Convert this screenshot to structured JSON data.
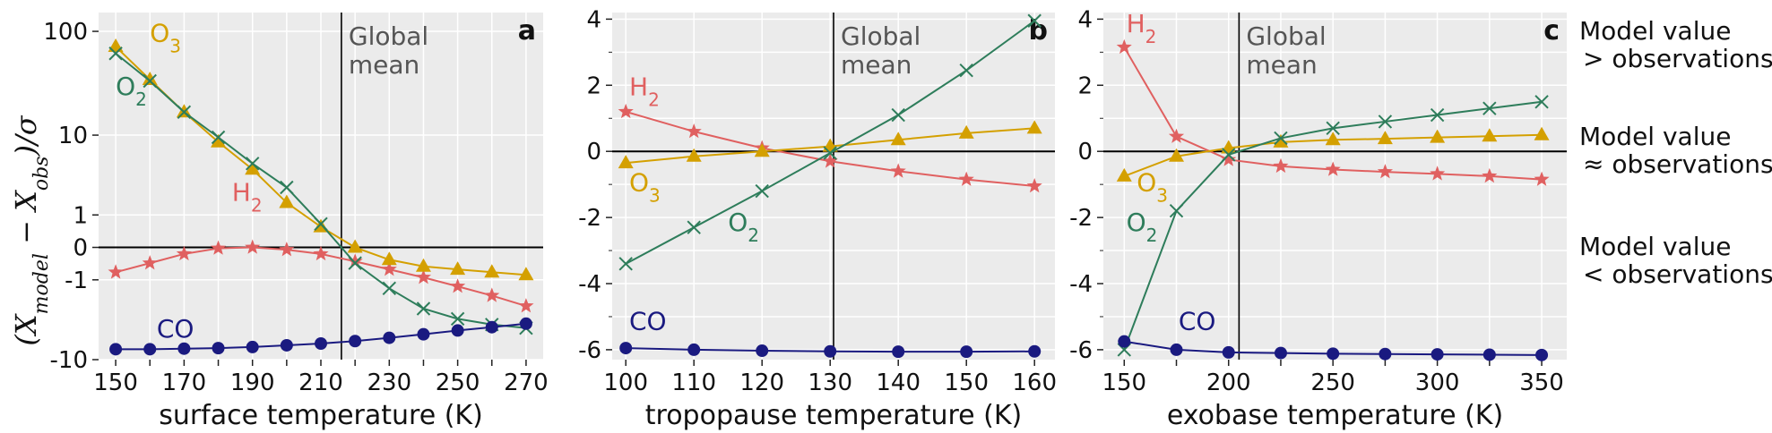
{
  "figure": {
    "ylabel": "(X_model − X_obs)/σ",
    "side_labels": [
      [
        "Model value",
        ">  observations"
      ],
      [
        "Model value",
        "≈ observations"
      ],
      [
        "Model value",
        "< observations"
      ]
    ]
  },
  "colors": {
    "H2": "#e06060",
    "O3": "#d4a000",
    "O2": "#2e7d5b",
    "CO": "#1a1a80",
    "grid_bg": "#ebebeb",
    "grid": "#ffffff"
  },
  "chart_data": [
    {
      "panel": "a",
      "type": "line",
      "yscale": "symlog",
      "xlabel": "surface temperature (K)",
      "ylabel": "(X_model − X_obs)/σ",
      "xlim": [
        145,
        275
      ],
      "ylim": [
        -10,
        150
      ],
      "xticks": [
        150,
        160,
        170,
        180,
        190,
        200,
        210,
        220,
        230,
        240,
        250,
        260,
        270
      ],
      "xticklabels": [
        "150",
        "170",
        "190",
        "210",
        "230",
        "250",
        "270"
      ],
      "yticks": [
        -10,
        -1,
        0,
        1,
        10,
        100
      ],
      "yticklabels": [
        "-10",
        "-1",
        "0",
        "1",
        "10",
        "100"
      ],
      "vline": 216,
      "vline_label": [
        "Global",
        "mean"
      ],
      "series": [
        {
          "name": "H2",
          "marker": "star",
          "label": {
            "text": "H₂",
            "x": 184,
            "y": 1.7
          },
          "x": [
            150,
            160,
            170,
            180,
            190,
            200,
            210,
            220,
            230,
            240,
            250,
            260,
            270
          ],
          "y": [
            -0.7,
            -0.4,
            -0.15,
            -0.02,
            0,
            -0.05,
            -0.15,
            -0.35,
            -0.6,
            -0.9,
            -1.3,
            -1.8,
            -2.5
          ]
        },
        {
          "name": "O3",
          "marker": "triangle",
          "label": {
            "text": "O₃",
            "x": 160,
            "y": 80
          },
          "x": [
            150,
            160,
            170,
            180,
            190,
            200,
            210,
            220,
            230,
            240,
            250,
            260,
            270
          ],
          "y": [
            72,
            35,
            17,
            8.5,
            4.3,
            1.6,
            0.55,
            0,
            -0.3,
            -0.5,
            -0.6,
            -0.7,
            -0.8
          ]
        },
        {
          "name": "O2",
          "marker": "x",
          "label": {
            "text": "O₂",
            "x": 150,
            "y": 25
          },
          "x": [
            150,
            160,
            170,
            180,
            190,
            200,
            210,
            220,
            230,
            240,
            250,
            260,
            270
          ],
          "y": [
            62,
            34,
            17,
            9.5,
            5,
            2.6,
            0.65,
            -0.4,
            -1.4,
            -2.7,
            -3.6,
            -4.2,
            -4.6
          ]
        },
        {
          "name": "CO",
          "marker": "circle",
          "label": {
            "text": "CO",
            "x": 162,
            "y": -5.8
          },
          "x": [
            150,
            160,
            170,
            180,
            190,
            200,
            210,
            220,
            230,
            240,
            250,
            260,
            270
          ],
          "y": [
            -7.8,
            -7.8,
            -7.7,
            -7.6,
            -7.4,
            -7.1,
            -6.8,
            -6.4,
            -5.9,
            -5.4,
            -4.9,
            -4.5,
            -4.1
          ]
        }
      ]
    },
    {
      "panel": "b",
      "type": "line",
      "xlabel": "tropopause temperature (K)",
      "xlim": [
        98,
        163
      ],
      "ylim": [
        -6.3,
        4.2
      ],
      "xticks": [
        100,
        110,
        120,
        130,
        140,
        150,
        160
      ],
      "xticklabels": [
        "100",
        "110",
        "120",
        "130",
        "140",
        "150",
        "160"
      ],
      "yticks": [
        -6,
        -4,
        -2,
        0,
        2,
        4
      ],
      "yticklabels": [
        "-6",
        "-4",
        "-2",
        "0",
        "2",
        "4"
      ],
      "vline": 130.5,
      "vline_label": [
        "Global",
        "mean"
      ],
      "series": [
        {
          "name": "H2",
          "marker": "star",
          "label": {
            "text": "H₂",
            "x": 100.5,
            "y": 1.7
          },
          "x": [
            100,
            110,
            120,
            130,
            140,
            150,
            160
          ],
          "y": [
            1.2,
            0.6,
            0.1,
            -0.3,
            -0.6,
            -0.85,
            -1.05
          ]
        },
        {
          "name": "O3",
          "marker": "triangle",
          "label": {
            "text": "O₃",
            "x": 100.5,
            "y": -1.2
          },
          "x": [
            100,
            110,
            120,
            130,
            140,
            150,
            160
          ],
          "y": [
            -0.35,
            -0.15,
            0,
            0.15,
            0.35,
            0.55,
            0.7
          ]
        },
        {
          "name": "O2",
          "marker": "x",
          "label": {
            "text": "O₂",
            "x": 115,
            "y": -2.4
          },
          "x": [
            100,
            110,
            120,
            130,
            140,
            150,
            160
          ],
          "y": [
            -3.4,
            -2.3,
            -1.2,
            -0.05,
            1.1,
            2.45,
            3.95
          ]
        },
        {
          "name": "CO",
          "marker": "circle",
          "label": {
            "text": "CO",
            "x": 100.5,
            "y": -5.4
          },
          "x": [
            100,
            110,
            120,
            130,
            140,
            150,
            160
          ],
          "y": [
            -5.95,
            -6,
            -6.03,
            -6.05,
            -6.06,
            -6.06,
            -6.05
          ]
        }
      ]
    },
    {
      "panel": "c",
      "type": "line",
      "xlabel": "exobase temperature (K)",
      "xlim": [
        140,
        362
      ],
      "ylim": [
        -6.3,
        4.2
      ],
      "xticks": [
        150,
        175,
        200,
        225,
        250,
        275,
        300,
        325,
        350
      ],
      "xticklabels": [
        "150",
        "200",
        "250",
        "300",
        "350"
      ],
      "yticks": [
        -6,
        -4,
        -2,
        0,
        2,
        4
      ],
      "yticklabels": [
        "-6",
        "-4",
        "-2",
        "0",
        "2",
        "4"
      ],
      "vline": 205,
      "vline_label": [
        "Global",
        "mean"
      ],
      "series": [
        {
          "name": "H2",
          "marker": "star",
          "label": {
            "text": "H₂",
            "x": 151,
            "y": 3.6
          },
          "x": [
            150,
            175,
            200,
            225,
            250,
            275,
            300,
            325,
            350
          ],
          "y": [
            3.15,
            0.45,
            -0.25,
            -0.45,
            -0.55,
            -0.62,
            -0.68,
            -0.75,
            -0.85
          ]
        },
        {
          "name": "O3",
          "marker": "triangle",
          "label": {
            "text": "O₃",
            "x": 156,
            "y": -1.2
          },
          "x": [
            150,
            175,
            200,
            225,
            250,
            275,
            300,
            325,
            350
          ],
          "y": [
            -0.75,
            -0.15,
            0.1,
            0.28,
            0.35,
            0.38,
            0.42,
            0.46,
            0.5
          ]
        },
        {
          "name": "O2",
          "marker": "x",
          "label": {
            "text": "O₂",
            "x": 151,
            "y": -2.4
          },
          "x": [
            150,
            175,
            200,
            225,
            250,
            275,
            300,
            325,
            350
          ],
          "y": [
            -6,
            -1.8,
            -0.1,
            0.4,
            0.7,
            0.9,
            1.1,
            1.3,
            1.5
          ]
        },
        {
          "name": "CO",
          "marker": "circle",
          "label": {
            "text": "CO",
            "x": 176,
            "y": -5.4
          },
          "x": [
            150,
            175,
            200,
            225,
            250,
            275,
            300,
            325,
            350
          ],
          "y": [
            -5.75,
            -6,
            -6.08,
            -6.1,
            -6.12,
            -6.13,
            -6.14,
            -6.15,
            -6.16
          ]
        }
      ]
    }
  ]
}
